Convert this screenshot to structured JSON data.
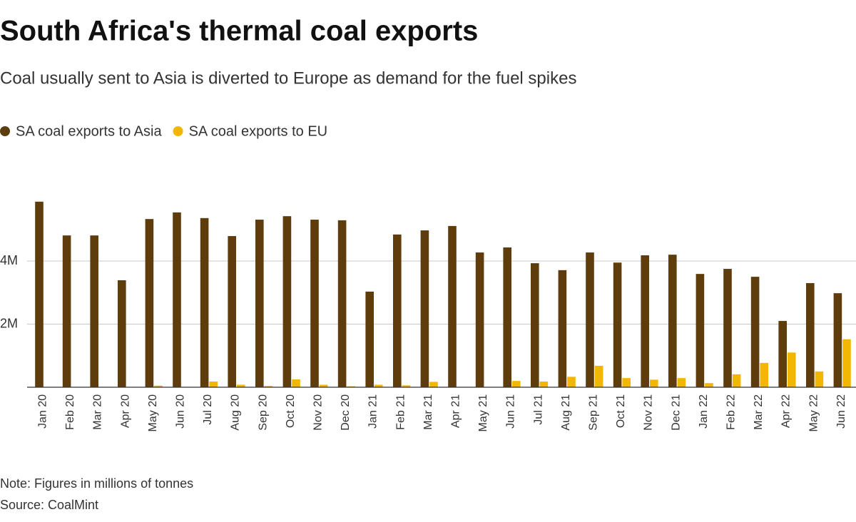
{
  "chart_data": {
    "type": "bar",
    "title": "South Africa's thermal coal exports",
    "subtitle": "Coal usually sent to Asia is diverted to Europe as demand for the fuel spikes",
    "note": "Note: Figures in millions of tonnes",
    "source": "Source: CoalMint",
    "categories": [
      "Jan 20",
      "Feb 20",
      "Mar 20",
      "Apr 20",
      "May 20",
      "Jun 20",
      "Jul 20",
      "Aug 20",
      "Sep 20",
      "Oct 20",
      "Nov 20",
      "Dec 20",
      "Jan 21",
      "Feb 21",
      "Mar 21",
      "Apr 21",
      "May 21",
      "Jun 21",
      "Jul 21",
      "Aug 21",
      "Sep 21",
      "Oct 21",
      "Nov 21",
      "Dec 21",
      "Jan 22",
      "Feb 22",
      "Mar 22",
      "Apr 22",
      "May 22",
      "Jun 22"
    ],
    "series": [
      {
        "name": "SA coal exports to Asia",
        "color": "#5e3c0c",
        "values": [
          5.88,
          4.81,
          4.81,
          3.39,
          5.33,
          5.54,
          5.36,
          4.79,
          5.31,
          5.42,
          5.31,
          5.29,
          3.03,
          4.84,
          4.97,
          5.11,
          4.27,
          4.43,
          3.93,
          3.71,
          4.27,
          3.95,
          4.18,
          4.2,
          3.59,
          3.75,
          3.5,
          2.1,
          3.3,
          2.98
        ]
      },
      {
        "name": "SA coal exports to EU",
        "color": "#f2b705",
        "values": [
          0,
          0,
          0,
          0,
          0.05,
          0,
          0.18,
          0.08,
          0.04,
          0.25,
          0.08,
          0.03,
          0.08,
          0.06,
          0.17,
          0,
          0,
          0.2,
          0.18,
          0.33,
          0.68,
          0.29,
          0.24,
          0.29,
          0.13,
          0.41,
          0.77,
          1.1,
          0.5,
          1.52
        ]
      }
    ],
    "ylim": [
      0,
      6
    ],
    "yticks": [
      {
        "value": 2,
        "label": "2M"
      },
      {
        "value": 4,
        "label": "4M"
      }
    ],
    "grid": true
  }
}
